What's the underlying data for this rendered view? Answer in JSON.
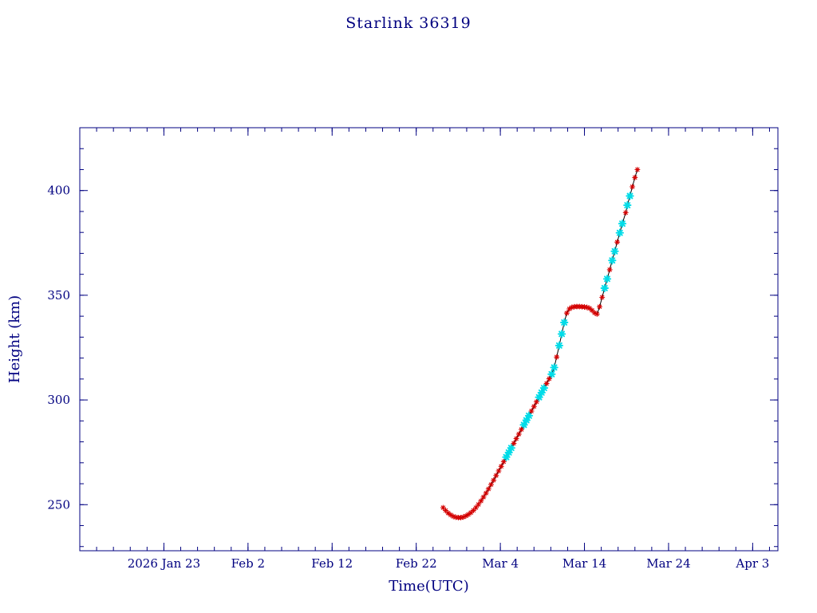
{
  "page": {
    "background": "#ffffff",
    "text_color": "#000080"
  },
  "chart_data": {
    "type": "line",
    "title": "Starlink 36319",
    "xlabel": "Time(UTC)",
    "ylabel": "Height (km)",
    "grid": false,
    "axis_color": "#000080",
    "line_color": "#000000",
    "xlim_days": [
      -10,
      73
    ],
    "x_major_ticks": [
      {
        "day": 0,
        "label": "2026 Jan 23"
      },
      {
        "day": 10,
        "label": "Feb 2"
      },
      {
        "day": 20,
        "label": "Feb 12"
      },
      {
        "day": 30,
        "label": "Feb 22"
      },
      {
        "day": 40,
        "label": "Mar 4"
      },
      {
        "day": 50,
        "label": "Mar 14"
      },
      {
        "day": 60,
        "label": "Mar 24"
      },
      {
        "day": 70,
        "label": "Apr 3"
      }
    ],
    "x_minor_step_days": 2,
    "ylim": [
      228,
      430
    ],
    "y_major_ticks": [
      250,
      300,
      350,
      400
    ],
    "y_minor_step": 10,
    "series": [
      {
        "name": "height-observations",
        "marker": "asterisk",
        "color": "#d40000"
      },
      {
        "name": "height-observations-highlighted",
        "marker": "asterisk",
        "color": "#00dce8"
      }
    ],
    "points_format": "[days_since_2026_Jan_23, height_km, series_index]",
    "points": [
      [
        33.2,
        248.6,
        0
      ],
      [
        33.5,
        247.2,
        0
      ],
      [
        33.8,
        246.0,
        0
      ],
      [
        34.1,
        245.1,
        0
      ],
      [
        34.4,
        244.4,
        0
      ],
      [
        34.7,
        244.0,
        0
      ],
      [
        35.0,
        243.8,
        0
      ],
      [
        35.3,
        243.8,
        0
      ],
      [
        35.6,
        244.1,
        0
      ],
      [
        35.9,
        244.6,
        0
      ],
      [
        36.2,
        245.3,
        0
      ],
      [
        36.5,
        246.2,
        0
      ],
      [
        36.8,
        247.3,
        0
      ],
      [
        37.1,
        248.6,
        0
      ],
      [
        37.4,
        250.1,
        0
      ],
      [
        37.7,
        251.8,
        0
      ],
      [
        38.0,
        253.6,
        0
      ],
      [
        38.3,
        255.5,
        0
      ],
      [
        38.6,
        257.5,
        0
      ],
      [
        38.9,
        259.6,
        0
      ],
      [
        39.2,
        261.7,
        0
      ],
      [
        39.5,
        263.9,
        0
      ],
      [
        39.8,
        266.1,
        0
      ],
      [
        40.1,
        268.3,
        0
      ],
      [
        40.4,
        270.5,
        0
      ],
      [
        40.7,
        272.7,
        1
      ],
      [
        41.0,
        274.9,
        1
      ],
      [
        41.3,
        277.1,
        1
      ],
      [
        41.6,
        279.3,
        0
      ],
      [
        41.9,
        281.5,
        0
      ],
      [
        42.2,
        283.7,
        0
      ],
      [
        42.5,
        285.9,
        0
      ],
      [
        42.8,
        288.1,
        1
      ],
      [
        43.1,
        290.3,
        1
      ],
      [
        43.4,
        292.5,
        1
      ],
      [
        43.7,
        294.7,
        0
      ],
      [
        44.0,
        296.9,
        0
      ],
      [
        44.3,
        299.1,
        0
      ],
      [
        44.6,
        301.3,
        1
      ],
      [
        44.9,
        303.5,
        1
      ],
      [
        45.2,
        305.7,
        1
      ],
      [
        45.5,
        307.9,
        0
      ],
      [
        45.8,
        310.1,
        0
      ],
      [
        46.1,
        312.3,
        1
      ],
      [
        46.4,
        315.5,
        1
      ],
      [
        46.7,
        320.5,
        0
      ],
      [
        47.0,
        326.0,
        1
      ],
      [
        47.3,
        331.5,
        1
      ],
      [
        47.6,
        337.0,
        1
      ],
      [
        47.9,
        341.5,
        0
      ],
      [
        48.2,
        343.5,
        0
      ],
      [
        48.5,
        344.2,
        0
      ],
      [
        48.8,
        344.5,
        0
      ],
      [
        49.1,
        344.6,
        0
      ],
      [
        49.4,
        344.6,
        0
      ],
      [
        49.7,
        344.5,
        0
      ],
      [
        50.0,
        344.4,
        0
      ],
      [
        50.3,
        344.2,
        0
      ],
      [
        50.6,
        343.8,
        0
      ],
      [
        50.9,
        342.8,
        0
      ],
      [
        51.2,
        341.6,
        0
      ],
      [
        51.5,
        341.0,
        0
      ],
      [
        51.8,
        344.5,
        0
      ],
      [
        52.1,
        349.0,
        0
      ],
      [
        52.4,
        353.4,
        1
      ],
      [
        52.7,
        357.8,
        1
      ],
      [
        53.0,
        362.2,
        0
      ],
      [
        53.3,
        366.6,
        1
      ],
      [
        53.6,
        371.0,
        1
      ],
      [
        53.9,
        375.4,
        0
      ],
      [
        54.2,
        379.8,
        1
      ],
      [
        54.5,
        384.2,
        1
      ],
      [
        54.9,
        389.4,
        0
      ],
      [
        55.1,
        393.0,
        1
      ],
      [
        55.4,
        397.4,
        1
      ],
      [
        55.7,
        401.8,
        0
      ],
      [
        56.0,
        406.2,
        0
      ],
      [
        56.3,
        410.0,
        0
      ]
    ]
  }
}
